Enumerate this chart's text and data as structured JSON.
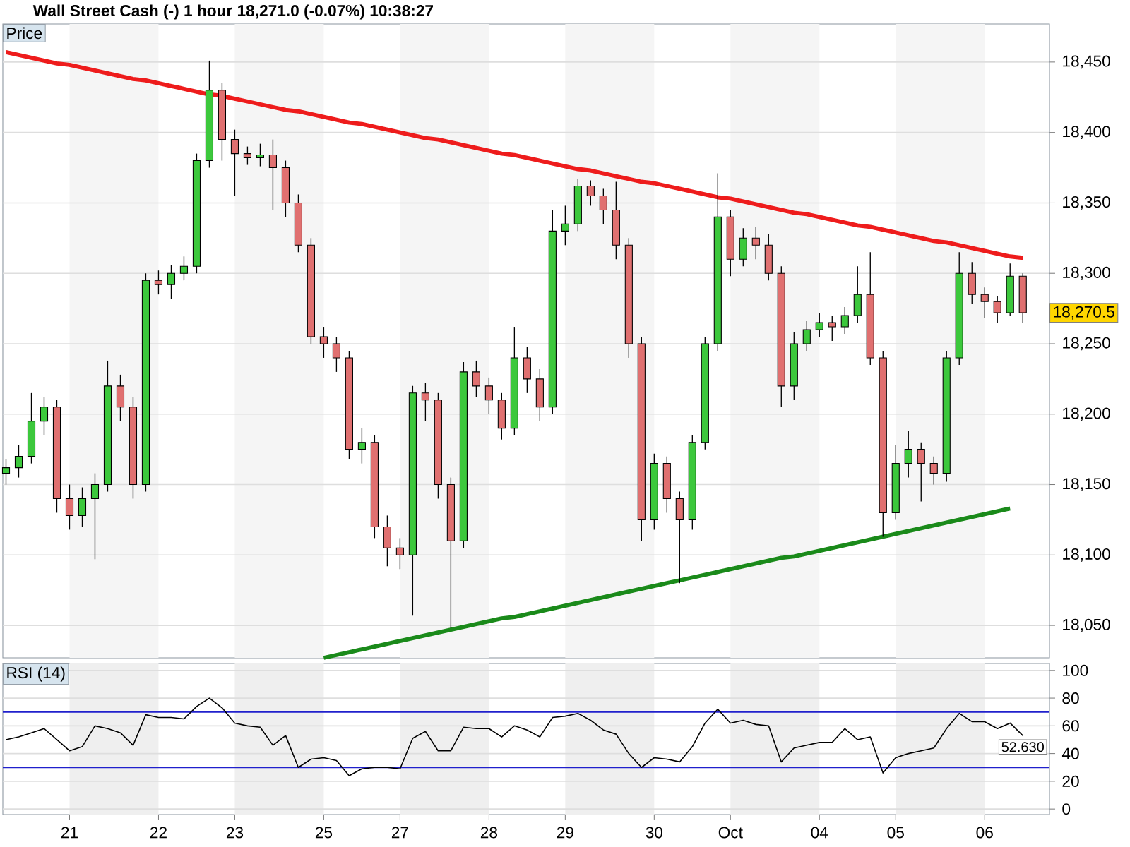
{
  "chart_data": [
    {
      "type": "candlestick",
      "title": "Wall Street Cash (-)   1 hour   18,271.0 (-0.07%)   10:38:27",
      "subtitle": "Price",
      "categories": [
        null,
        null,
        null,
        null,
        null,
        "21",
        null,
        null,
        null,
        null,
        null,
        null,
        "22",
        null,
        null,
        null,
        null,
        null,
        "23",
        null,
        null,
        null,
        null,
        null,
        null,
        "25",
        null,
        null,
        null,
        null,
        null,
        "27",
        null,
        null,
        null,
        null,
        null,
        null,
        "28",
        null,
        null,
        null,
        null,
        null,
        "29",
        null,
        null,
        null,
        null,
        null,
        null,
        "30",
        null,
        null,
        null,
        null,
        null,
        "Oct",
        null,
        null,
        null,
        null,
        null,
        null,
        "04",
        null,
        null,
        null,
        null,
        null,
        "05",
        null,
        null,
        null,
        null,
        null,
        null,
        "06",
        null,
        null,
        null
      ],
      "ohlc": [
        [
          18158,
          18168,
          18150,
          18162
        ],
        [
          18162,
          18178,
          18155,
          18170
        ],
        [
          18170,
          18215,
          18165,
          18195
        ],
        [
          18195,
          18212,
          18185,
          18205
        ],
        [
          18205,
          18210,
          18130,
          18140
        ],
        [
          18140,
          18150,
          18118,
          18128
        ],
        [
          18128,
          18148,
          18120,
          18140
        ],
        [
          18140,
          18158,
          18097,
          18150
        ],
        [
          18150,
          18238,
          18145,
          18220
        ],
        [
          18220,
          18228,
          18195,
          18205
        ],
        [
          18205,
          18212,
          18140,
          18150
        ],
        [
          18150,
          18300,
          18145,
          18295
        ],
        [
          18295,
          18302,
          18285,
          18292
        ],
        [
          18292,
          18306,
          18282,
          18300
        ],
        [
          18300,
          18312,
          18295,
          18305
        ],
        [
          18305,
          18385,
          18300,
          18380
        ],
        [
          18380,
          18451,
          18375,
          18430
        ],
        [
          18430,
          18435,
          18380,
          18395
        ],
        [
          18395,
          18402,
          18355,
          18385
        ],
        [
          18385,
          18390,
          18377,
          18382
        ],
        [
          18382,
          18392,
          18376,
          18384
        ],
        [
          18384,
          18395,
          18345,
          18375
        ],
        [
          18375,
          18380,
          18340,
          18350
        ],
        [
          18350,
          18356,
          18315,
          18320
        ],
        [
          18320,
          18325,
          18250,
          18255
        ],
        [
          18255,
          18262,
          18240,
          18250
        ],
        [
          18250,
          18255,
          18230,
          18240
        ],
        [
          18240,
          18245,
          18168,
          18175
        ],
        [
          18175,
          18190,
          18165,
          18180
        ],
        [
          18180,
          18185,
          18112,
          18120
        ],
        [
          18120,
          18128,
          18092,
          18105
        ],
        [
          18105,
          18112,
          18090,
          18100
        ],
        [
          18100,
          18220,
          18057,
          18215
        ],
        [
          18215,
          18222,
          18195,
          18210
        ],
        [
          18210,
          18215,
          18140,
          18150
        ],
        [
          18150,
          18155,
          18048,
          18110
        ],
        [
          18110,
          18237,
          18105,
          18230
        ],
        [
          18230,
          18238,
          18212,
          18220
        ],
        [
          18220,
          18226,
          18200,
          18210
        ],
        [
          18210,
          18215,
          18182,
          18190
        ],
        [
          18190,
          18262,
          18185,
          18240
        ],
        [
          18240,
          18248,
          18215,
          18225
        ],
        [
          18225,
          18232,
          18195,
          18205
        ],
        [
          18205,
          18345,
          18200,
          18330
        ],
        [
          18330,
          18348,
          18320,
          18335
        ],
        [
          18335,
          18367,
          18330,
          18362
        ],
        [
          18362,
          18366,
          18348,
          18355
        ],
        [
          18355,
          18360,
          18335,
          18345
        ],
        [
          18345,
          18365,
          18310,
          18320
        ],
        [
          18320,
          18325,
          18240,
          18250
        ],
        [
          18250,
          18255,
          18110,
          18125
        ],
        [
          18125,
          18172,
          18118,
          18165
        ],
        [
          18165,
          18170,
          18130,
          18140
        ],
        [
          18140,
          18145,
          18080,
          18125
        ],
        [
          18125,
          18185,
          18118,
          18180
        ],
        [
          18180,
          18255,
          18175,
          18250
        ],
        [
          18250,
          18371,
          18245,
          18340
        ],
        [
          18340,
          18345,
          18298,
          18310
        ],
        [
          18310,
          18332,
          18305,
          18325
        ],
        [
          18325,
          18333,
          18310,
          18320
        ],
        [
          18320,
          18328,
          18295,
          18300
        ],
        [
          18300,
          18305,
          18205,
          18220
        ],
        [
          18220,
          18258,
          18210,
          18250
        ],
        [
          18250,
          18266,
          18245,
          18260
        ],
        [
          18260,
          18272,
          18255,
          18265
        ],
        [
          18265,
          18270,
          18252,
          18262
        ],
        [
          18262,
          18276,
          18257,
          18270
        ],
        [
          18270,
          18305,
          18265,
          18285
        ],
        [
          18285,
          18315,
          18235,
          18240
        ],
        [
          18240,
          18245,
          18113,
          18130
        ],
        [
          18130,
          18178,
          18125,
          18165
        ],
        [
          18165,
          18188,
          18155,
          18175
        ],
        [
          18175,
          18180,
          18138,
          18165
        ],
        [
          18165,
          18170,
          18150,
          18158
        ],
        [
          18158,
          18245,
          18152,
          18240
        ],
        [
          18240,
          18315,
          18235,
          18300
        ],
        [
          18300,
          18308,
          18278,
          18285
        ],
        [
          18285,
          18290,
          18268,
          18280
        ],
        [
          18280,
          18284,
          18265,
          18272
        ],
        [
          18272,
          18307,
          18270,
          18298
        ],
        [
          18298,
          18300,
          18265,
          18272
        ]
      ],
      "colors": [
        "#3cc83c",
        "#3cc83c",
        "#3cc83c",
        "#3cc83c",
        "#e07070",
        "#e07070",
        "#3cc83c",
        "#3cc83c",
        "#3cc83c",
        "#e07070",
        "#e07070",
        "#3cc83c",
        "#e07070",
        "#3cc83c",
        "#3cc83c",
        "#3cc83c",
        "#3cc83c",
        "#e07070",
        "#e07070",
        "#e07070",
        "#3cc83c",
        "#e07070",
        "#e07070",
        "#e07070",
        "#e07070",
        "#e07070",
        "#e07070",
        "#e07070",
        "#3cc83c",
        "#e07070",
        "#e07070",
        "#e07070",
        "#3cc83c",
        "#e07070",
        "#e07070",
        "#e07070",
        "#3cc83c",
        "#e07070",
        "#e07070",
        "#e07070",
        "#3cc83c",
        "#e07070",
        "#e07070",
        "#3cc83c",
        "#3cc83c",
        "#3cc83c",
        "#e07070",
        "#e07070",
        "#e07070",
        "#e07070",
        "#e07070",
        "#3cc83c",
        "#e07070",
        "#e07070",
        "#3cc83c",
        "#3cc83c",
        "#3cc83c",
        "#e07070",
        "#3cc83c",
        "#e07070",
        "#e07070",
        "#e07070",
        "#3cc83c",
        "#3cc83c",
        "#3cc83c",
        "#e07070",
        "#3cc83c",
        "#3cc83c",
        "#e07070",
        "#e07070",
        "#3cc83c",
        "#3cc83c",
        "#e07070",
        "#e07070",
        "#3cc83c",
        "#3cc83c",
        "#e07070",
        "#e07070",
        "#e07070",
        "#3cc83c",
        "#e07070"
      ],
      "series": [
        {
          "type": "line",
          "color": "#ee1c1c",
          "values": [
            18457,
            18455,
            18453,
            18451,
            18449,
            18448,
            18446,
            18444,
            18442,
            18440,
            18438,
            18437,
            18435,
            18433,
            18431,
            18429,
            18427,
            18426,
            18424,
            18422,
            18420,
            18418,
            18416,
            18415,
            18413,
            18411,
            18409,
            18407,
            18406,
            18404,
            18402,
            18400,
            18398,
            18396,
            18395,
            18393,
            18391,
            18389,
            18387,
            18385,
            18384,
            18382,
            18380,
            18378,
            18376,
            18374,
            18373,
            18371,
            18369,
            18367,
            18365,
            18364,
            18362,
            18360,
            18358,
            18356,
            18354,
            18353,
            18351,
            18349,
            18347,
            18345,
            18343,
            18342,
            18340,
            18338,
            18336,
            18334,
            18333,
            18331,
            18329,
            18327,
            18325,
            18323,
            18322,
            18320,
            18318,
            18316,
            18314,
            18312,
            18311
          ]
        },
        {
          "type": "line",
          "color": "#1a8a1a",
          "values": [
            null,
            null,
            null,
            null,
            null,
            null,
            null,
            null,
            null,
            null,
            null,
            null,
            null,
            null,
            null,
            null,
            null,
            null,
            null,
            null,
            null,
            null,
            null,
            null,
            null,
            18027,
            18029,
            18031,
            18033,
            18035,
            18037,
            18039,
            18041,
            18043,
            18045,
            18047,
            18049,
            18051,
            18053,
            18055,
            18056,
            18058,
            18060,
            18062,
            18064,
            18066,
            18068,
            18070,
            18072,
            18074,
            18076,
            18078,
            18080,
            18082,
            18084,
            18086,
            18088,
            18090,
            18092,
            18094,
            18096,
            18098,
            18099,
            18101,
            18103,
            18105,
            18107,
            18109,
            18111,
            18113,
            18115,
            18117,
            18119,
            18121,
            18123,
            18125,
            18127,
            18129,
            18131,
            18133,
            null
          ]
        }
      ],
      "ylim": [
        18027,
        18477
      ],
      "yticks": [
        {
          "value": 18050,
          "label": "18,050"
        },
        {
          "value": 18100,
          "label": "18,100"
        },
        {
          "value": 18150,
          "label": "18,150"
        },
        {
          "value": 18200,
          "label": "18,200"
        },
        {
          "value": 18250,
          "label": "18,250"
        },
        {
          "value": 18300,
          "label": "18,300"
        },
        {
          "value": 18350,
          "label": "18,350"
        },
        {
          "value": 18400,
          "label": "18,400"
        },
        {
          "value": 18450,
          "label": "18,450"
        }
      ],
      "bands": [
        {
          "axis": "x",
          "from": "21",
          "to": "22",
          "color": "#f5f5f5"
        },
        {
          "axis": "x",
          "from": "23",
          "to": "25",
          "color": "#f5f5f5"
        },
        {
          "axis": "x",
          "from": "27",
          "to": "28",
          "color": "#f5f5f5"
        },
        {
          "axis": "x",
          "from": "29",
          "to": "30",
          "color": "#f5f5f5"
        },
        {
          "axis": "x",
          "from": "Oct",
          "to": "04",
          "color": "#f5f5f5"
        },
        {
          "axis": "x",
          "from": "05",
          "to": "06",
          "color": "#f5f5f5"
        }
      ],
      "annotations": [
        "18,270.5"
      ],
      "grid": "y",
      "tick_labels": "y"
    },
    {
      "type": "line",
      "subtitle": "RSI (14)",
      "color": "#000000",
      "categories": [
        null,
        null,
        null,
        null,
        null,
        "21",
        null,
        null,
        null,
        null,
        null,
        null,
        "22",
        null,
        null,
        null,
        null,
        null,
        "23",
        null,
        null,
        null,
        null,
        null,
        null,
        "25",
        null,
        null,
        null,
        null,
        null,
        "27",
        null,
        null,
        null,
        null,
        null,
        null,
        "28",
        null,
        null,
        null,
        null,
        null,
        "29",
        null,
        null,
        null,
        null,
        null,
        null,
        "30",
        null,
        null,
        null,
        null,
        null,
        "Oct",
        null,
        null,
        null,
        null,
        null,
        null,
        "04",
        null,
        null,
        null,
        null,
        null,
        "05",
        null,
        null,
        null,
        null,
        null,
        null,
        "06",
        null,
        null,
        null
      ],
      "values": [
        50,
        52,
        55,
        58,
        50,
        42,
        45,
        60,
        58,
        55,
        46,
        68,
        66,
        66,
        65,
        74,
        80,
        73,
        62,
        60,
        59,
        46,
        53,
        30,
        36,
        37,
        35,
        24,
        29,
        30,
        30,
        29,
        51,
        56,
        42,
        42,
        59,
        58,
        58,
        52,
        60,
        57,
        52,
        66,
        67,
        69,
        64,
        57,
        54,
        40,
        30,
        37,
        36,
        34,
        45,
        62,
        72,
        62,
        64,
        61,
        60,
        34,
        44,
        46,
        48,
        48,
        58,
        50,
        52,
        26,
        37,
        40,
        42,
        44,
        58,
        69,
        63,
        63,
        58,
        62,
        53
      ],
      "ylim": [
        -4,
        105
      ],
      "yticks": [
        0,
        20,
        40,
        60,
        80,
        100
      ],
      "ref_lines": [
        {
          "axis": "y",
          "value": 30,
          "color": "#2020cc"
        },
        {
          "axis": "y",
          "value": 70,
          "color": "#2020cc"
        }
      ],
      "bands": [
        {
          "axis": "x",
          "from": "21",
          "to": "22",
          "color": "#efefef"
        },
        {
          "axis": "x",
          "from": "23",
          "to": "25",
          "color": "#efefef"
        },
        {
          "axis": "x",
          "from": "27",
          "to": "28",
          "color": "#efefef"
        },
        {
          "axis": "x",
          "from": "29",
          "to": "30",
          "color": "#efefef"
        },
        {
          "axis": "x",
          "from": "Oct",
          "to": "04",
          "color": "#efefef"
        },
        {
          "axis": "x",
          "from": "05",
          "to": "06",
          "color": "#efefef"
        }
      ],
      "annotations": [
        "52.630"
      ],
      "grid": "y"
    }
  ]
}
